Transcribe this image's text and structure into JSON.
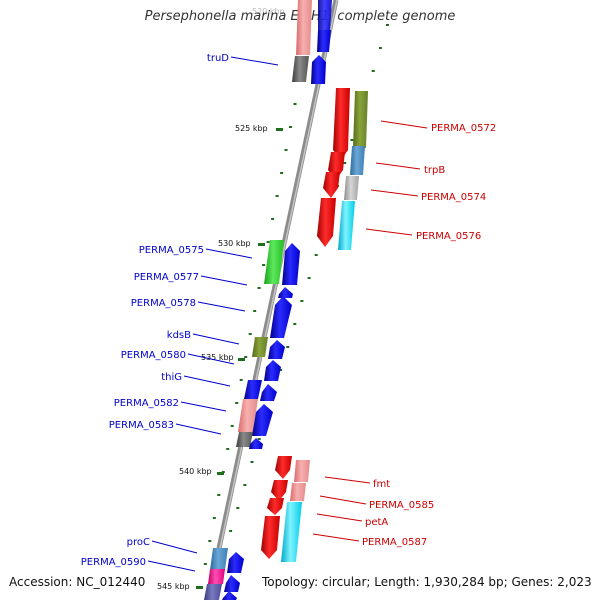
{
  "title": "Persephonella marina EX-H1, complete genome",
  "footer": {
    "accession": "Accession: NC_012440",
    "topology": "Topology: circular; Length: 1,930,284 bp; Genes: 2,023"
  },
  "scale": {
    "ticks": [
      "520 kbp",
      "525 kbp",
      "530 kbp",
      "535 kbp",
      "540 kbp",
      "545 kbp"
    ],
    "tick_color": "#1e6e1e"
  },
  "gene_labels": {
    "forward": [
      "PERMA_0572",
      "trpB",
      "PERMA_0574",
      "PERMA_0576",
      "fmt",
      "PERMA_0585",
      "petA",
      "PERMA_0587"
    ],
    "reverse": [
      "truD",
      "PERMA_0575",
      "PERMA_0577",
      "PERMA_0578",
      "kdsB",
      "PERMA_0580",
      "thiG",
      "PERMA_0582",
      "PERMA_0583",
      "proC",
      "PERMA_0590"
    ]
  },
  "colors": {
    "forward_label": "#cc0000",
    "reverse_label": "#0000cc",
    "forward_cds": "#ff0000",
    "reverse_cds": "#0000ff",
    "backbone": "#808080"
  }
}
